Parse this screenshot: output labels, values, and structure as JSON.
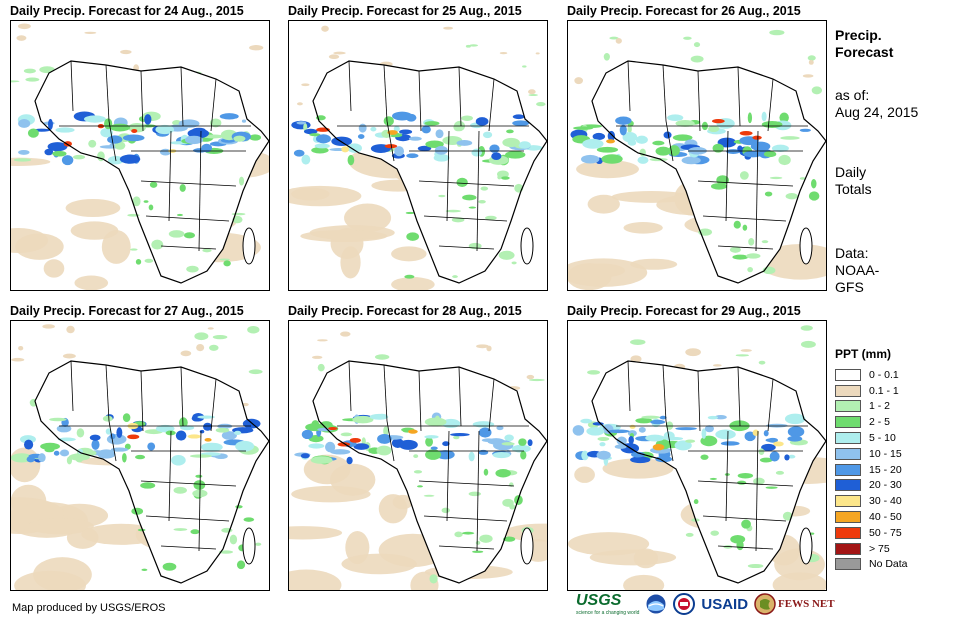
{
  "panels": [
    {
      "title": "Daily Precip. Forecast for 24 Aug., 2015"
    },
    {
      "title": "Daily Precip. Forecast for 25 Aug., 2015"
    },
    {
      "title": "Daily Precip. Forecast for 26 Aug., 2015"
    },
    {
      "title": "Daily Precip. Forecast for 27 Aug., 2015"
    },
    {
      "title": "Daily Precip. Forecast for 28 Aug., 2015"
    },
    {
      "title": "Daily Precip. Forecast for 29 Aug., 2015"
    }
  ],
  "sidebar": {
    "heading_line1": "Precip.",
    "heading_line2": "Forecast",
    "asof_line1": "as of:",
    "asof_line2": "Aug 24, 2015",
    "totals_line1": "Daily",
    "totals_line2": "Totals",
    "data_line1": "Data:",
    "data_line2": "NOAA-",
    "data_line3": "GFS"
  },
  "legend": {
    "title": "PPT (mm)",
    "items": [
      {
        "label": "0 - 0.1",
        "color": "#ffffff"
      },
      {
        "label": "0.1 - 1",
        "color": "#ecd9bd"
      },
      {
        "label": "1 - 2",
        "color": "#b3f0b3"
      },
      {
        "label": "2 - 5",
        "color": "#6fdc6f"
      },
      {
        "label": "5 - 10",
        "color": "#aeeeee"
      },
      {
        "label": "10 - 15",
        "color": "#8fc2ee"
      },
      {
        "label": "15 - 20",
        "color": "#4f98e6"
      },
      {
        "label": "20 - 30",
        "color": "#1f5fd6"
      },
      {
        "label": "30 - 40",
        "color": "#fce68a"
      },
      {
        "label": "40 - 50",
        "color": "#f5a623"
      },
      {
        "label": "50 - 75",
        "color": "#ee3a0c"
      },
      {
        "label": "> 75",
        "color": "#a31515"
      },
      {
        "label": "No Data",
        "color": "#999999"
      }
    ]
  },
  "credit": "Map produced by USGS/EROS",
  "logos": {
    "usgs": "USGS",
    "usgs_tagline": "science for a changing world",
    "usaid": "USAID",
    "fews": "FEWS NET"
  }
}
